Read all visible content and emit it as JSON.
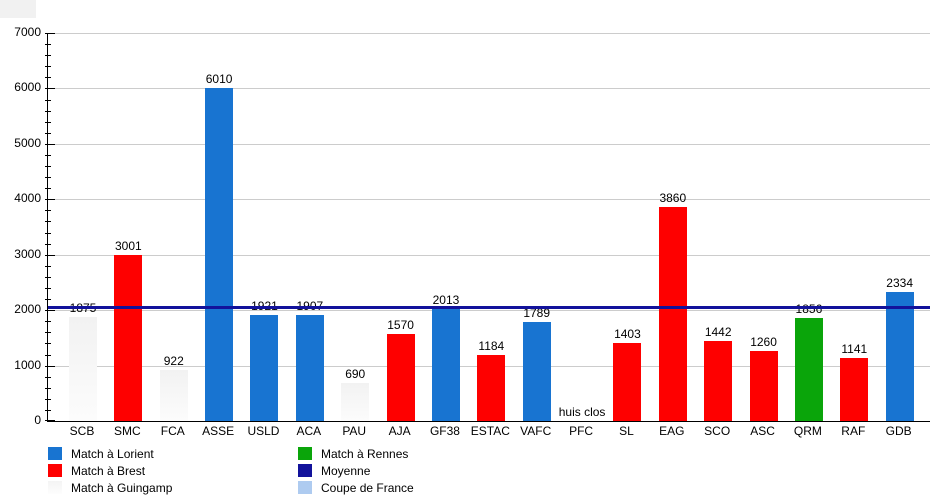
{
  "chart_data": {
    "type": "bar",
    "title": "",
    "xlabel": "",
    "ylabel": "",
    "ylim": [
      0,
      7000
    ],
    "yticks": [
      0,
      1000,
      2000,
      3000,
      4000,
      5000,
      6000,
      7000
    ],
    "yminor_step": 200,
    "grid": "horizontal-major-only",
    "legend_position": "bottom",
    "categories": [
      "SCB",
      "SMC",
      "FCA",
      "ASSE",
      "USLD",
      "ACA",
      "PAU",
      "AJA",
      "GF38",
      "ESTAC",
      "VAFC",
      "PFC",
      "SL",
      "EAG",
      "SCO",
      "ASC",
      "QRM",
      "RAF",
      "GDB"
    ],
    "values": [
      1875,
      3001,
      922,
      6010,
      1921,
      1907,
      690,
      1570,
      2013,
      1184,
      1789,
      null,
      1403,
      3860,
      1442,
      1260,
      1856,
      1141,
      2334
    ],
    "bars": [
      {
        "label": "SCB",
        "value": 1875,
        "display": "1875",
        "color_key": "guingamp"
      },
      {
        "label": "SMC",
        "value": 3001,
        "display": "3001",
        "color_key": "brest"
      },
      {
        "label": "FCA",
        "value": 922,
        "display": "922",
        "color_key": "guingamp"
      },
      {
        "label": "ASSE",
        "value": 6010,
        "display": "6010",
        "color_key": "lorient"
      },
      {
        "label": "USLD",
        "value": 1921,
        "display": "1921",
        "color_key": "lorient"
      },
      {
        "label": "ACA",
        "value": 1907,
        "display": "1907",
        "color_key": "lorient"
      },
      {
        "label": "PAU",
        "value": 690,
        "display": "690",
        "color_key": "guingamp"
      },
      {
        "label": "AJA",
        "value": 1570,
        "display": "1570",
        "color_key": "brest"
      },
      {
        "label": "GF38",
        "value": 2013,
        "display": "2013",
        "color_key": "lorient"
      },
      {
        "label": "ESTAC",
        "value": 1184,
        "display": "1184",
        "color_key": "brest"
      },
      {
        "label": "VAFC",
        "value": 1789,
        "display": "1789",
        "color_key": "lorient"
      },
      {
        "label": "PFC",
        "value": null,
        "display": "huis clos",
        "color_key": "none"
      },
      {
        "label": "SL",
        "value": 1403,
        "display": "1403",
        "color_key": "brest"
      },
      {
        "label": "EAG",
        "value": 3860,
        "display": "3860",
        "color_key": "brest"
      },
      {
        "label": "SCO",
        "value": 1442,
        "display": "1442",
        "color_key": "brest"
      },
      {
        "label": "ASC",
        "value": 1260,
        "display": "1260",
        "color_key": "brest"
      },
      {
        "label": "QRM",
        "value": 1856,
        "display": "1856",
        "color_key": "rennes"
      },
      {
        "label": "RAF",
        "value": 1141,
        "display": "1141",
        "color_key": "brest"
      },
      {
        "label": "GDB",
        "value": 2334,
        "display": "2334",
        "color_key": "lorient"
      }
    ],
    "average_line": {
      "label": "Moyenne",
      "value": 2030,
      "color": "#12129b"
    },
    "colors": {
      "lorient": "#1874d1",
      "brest": "#fe0000",
      "guingamp": "#fbfbfb",
      "rennes": "#0aa50a",
      "moyenne": "#12129b",
      "coupe": "#aecbf0"
    },
    "legend": {
      "columns": [
        [
          {
            "label": "Match à Lorient",
            "color_key": "lorient"
          },
          {
            "label": "Match à Brest",
            "color_key": "brest"
          },
          {
            "label": "Match à Guingamp",
            "color_key": "guingamp"
          }
        ],
        [
          {
            "label": "Match à Rennes",
            "color_key": "rennes"
          },
          {
            "label": "Moyenne",
            "color_key": "moyenne"
          },
          {
            "label": "Coupe de France",
            "color_key": "coupe"
          }
        ]
      ]
    }
  }
}
